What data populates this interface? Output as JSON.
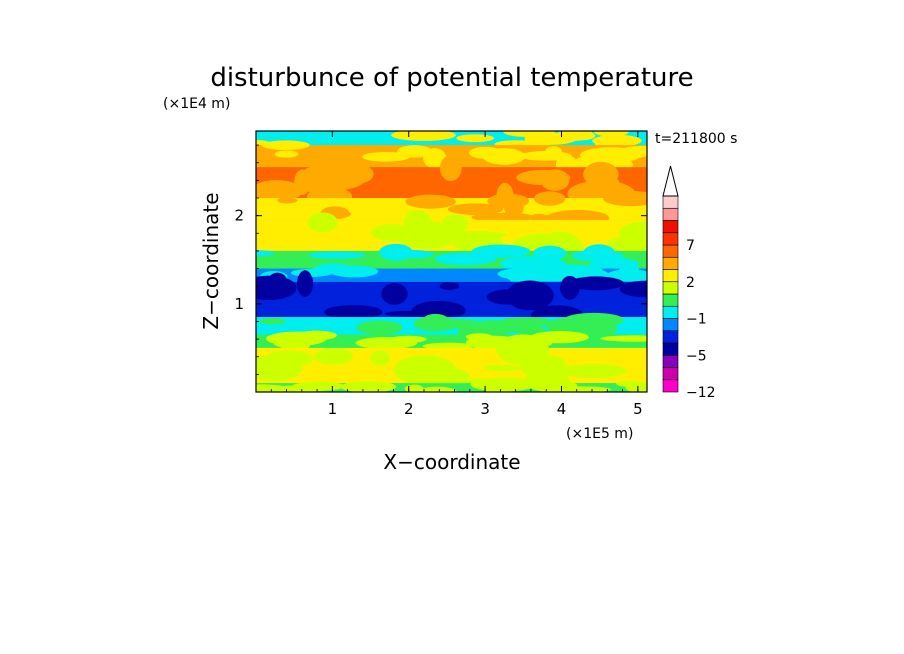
{
  "chart_data": {
    "type": "heatmap",
    "title": "disturbunce of potential temperature",
    "xlabel": "X−coordinate",
    "ylabel": "Z−coordinate",
    "x_unit": "(×1E5 m)",
    "y_unit": "(×1E4 m)",
    "time_label": "t=211800 s",
    "xlim": [
      0,
      5.12
    ],
    "ylim": [
      0,
      2.96
    ],
    "x_ticks": [
      1,
      2,
      3,
      4,
      5
    ],
    "y_ticks": [
      1,
      2
    ],
    "colorbar": {
      "levels": [
        {
          "color": "#ff00cc",
          "label": "−12"
        },
        {
          "color": "#cc00aa",
          "label": ""
        },
        {
          "color": "#8800bb",
          "label": ""
        },
        {
          "color": "#0000a0",
          "label": "−5"
        },
        {
          "color": "#0022dd",
          "label": ""
        },
        {
          "color": "#0088ff",
          "label": ""
        },
        {
          "color": "#00eeee",
          "label": "−1"
        },
        {
          "color": "#33ee55",
          "label": ""
        },
        {
          "color": "#ccff00",
          "label": ""
        },
        {
          "color": "#ffee00",
          "label": "2"
        },
        {
          "color": "#ffaa00",
          "label": ""
        },
        {
          "color": "#ff6600",
          "label": ""
        },
        {
          "color": "#ff3300",
          "label": "7"
        },
        {
          "color": "#ee1100",
          "label": ""
        },
        {
          "color": "#ff9999",
          "label": ""
        },
        {
          "color": "#ffcccc",
          "label": ""
        }
      ],
      "extend": "max"
    },
    "field_rows": [
      {
        "z_range": [
          2.8,
          2.96
        ],
        "dominant": "#00eeee",
        "secondary": "#ffee00"
      },
      {
        "z_range": [
          2.55,
          2.8
        ],
        "dominant": "#ffaa00",
        "secondary": "#ffee00"
      },
      {
        "z_range": [
          2.2,
          2.55
        ],
        "dominant": "#ff6600",
        "secondary": "#ffaa00"
      },
      {
        "z_range": [
          1.95,
          2.2
        ],
        "dominant": "#ffee00",
        "secondary": "#ffaa00"
      },
      {
        "z_range": [
          1.6,
          1.95
        ],
        "dominant": "#ffee00",
        "secondary": "#ccff00"
      },
      {
        "z_range": [
          1.4,
          1.6
        ],
        "dominant": "#33ee55",
        "secondary": "#00eeee"
      },
      {
        "z_range": [
          1.25,
          1.4
        ],
        "dominant": "#0088ff",
        "secondary": "#00eeee"
      },
      {
        "z_range": [
          0.85,
          1.25
        ],
        "dominant": "#0022dd",
        "secondary": "#0000a0"
      },
      {
        "z_range": [
          0.65,
          0.85
        ],
        "dominant": "#00eeee",
        "secondary": "#33ee55"
      },
      {
        "z_range": [
          0.5,
          0.65
        ],
        "dominant": "#33ee55",
        "secondary": "#ccff00"
      },
      {
        "z_range": [
          0.1,
          0.5
        ],
        "dominant": "#ffee00",
        "secondary": "#ccff00"
      },
      {
        "z_range": [
          0.0,
          0.1
        ],
        "dominant": "#33ee55",
        "secondary": "#ccff00"
      }
    ]
  }
}
